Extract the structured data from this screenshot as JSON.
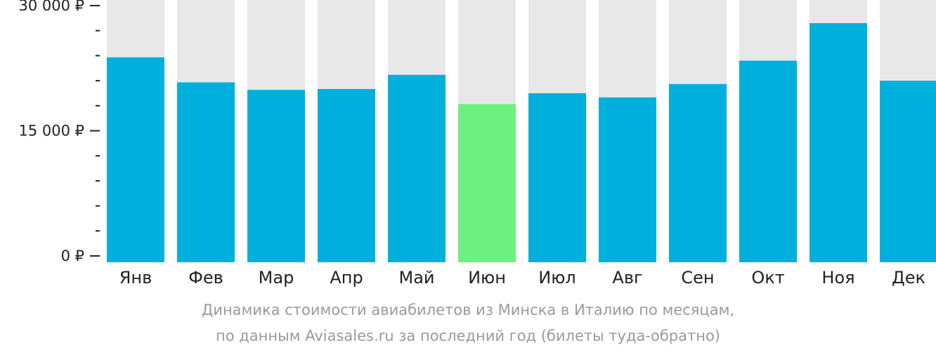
{
  "chart_data": {
    "type": "bar",
    "categories": [
      "Янв",
      "Фев",
      "Мар",
      "Апр",
      "Май",
      "Июн",
      "Июл",
      "Авг",
      "Сен",
      "Окт",
      "Ноя",
      "Дек"
    ],
    "values": [
      23800,
      20800,
      19900,
      20000,
      21700,
      18200,
      19500,
      19000,
      20600,
      23400,
      27900,
      21000
    ],
    "highlight_index": 5,
    "ylim": [
      0,
      30000
    ],
    "y_ticks": [
      {
        "value": 0,
        "label": "0 ₽"
      },
      {
        "value": 15000,
        "label": "15 000 ₽"
      },
      {
        "value": 30000,
        "label": "30 000 ₽"
      }
    ],
    "minor_tick_step": 3000,
    "colors": {
      "bar": "#00b0dc",
      "highlight": "#6ef080",
      "background_bar": "#e8e8e8",
      "axis": "#222222"
    },
    "caption_lines": [
      "Динамика стоимости авиабилетов из Минска в Италию по месяцам,",
      "по данным Aviasales.ru за последний год (билеты туда-обратно)"
    ]
  }
}
